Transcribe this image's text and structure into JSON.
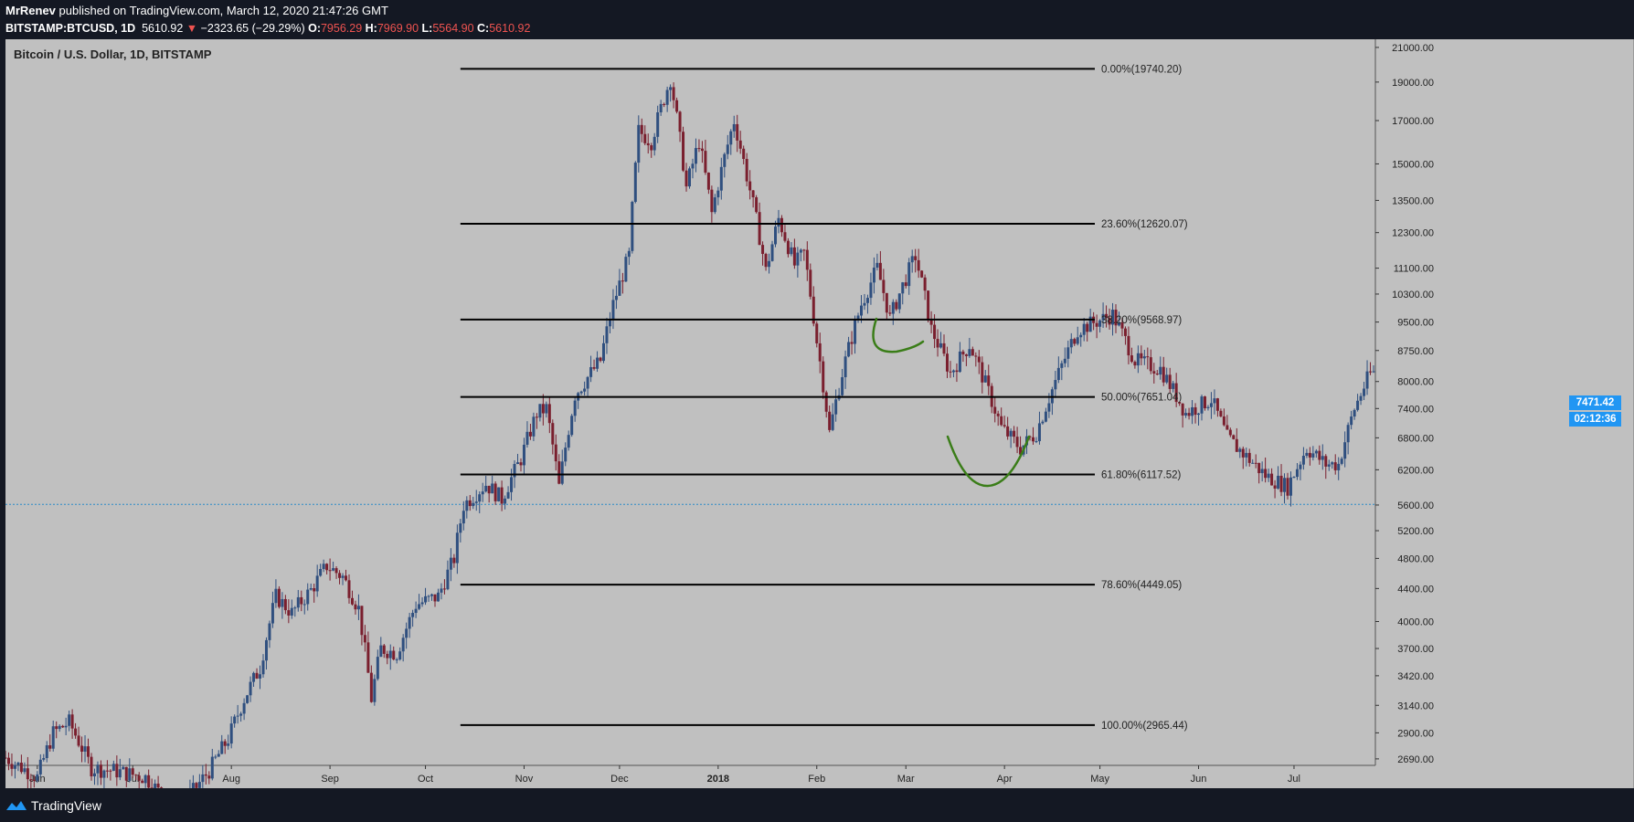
{
  "header": {
    "author": "MrRenev",
    "published": "published on TradingView.com, March 12, 2020 21:47:26 GMT",
    "symbol": "BITSTAMP:BTCUSD, 1D",
    "last": "5610.92",
    "change_arrow": "▼",
    "change": "−2323.65 (−29.29%)",
    "o_label": "O:",
    "o": "7956.29",
    "h_label": "H:",
    "h": "7969.90",
    "l_label": "L:",
    "l": "5564.90",
    "c_label": "C:",
    "c": "5610.92"
  },
  "badges": {
    "price": "7471.42",
    "countdown": "02:12:36"
  },
  "footer": {
    "brand": "TradingView"
  },
  "colors": {
    "background": "#141823",
    "chart_bg": "#c0c0c0",
    "up_candle": "#2f4f7f",
    "down_candle": "#7a1f2e",
    "fib_line": "#000000",
    "annotation": "#3a7d18",
    "badge": "#2196f3",
    "down_text": "#ef5350"
  },
  "chart_data": {
    "type": "candlestick",
    "title": "Bitcoin / U.S. Dollar, 1D, BITSTAMP",
    "scale": "log",
    "ylim": [
      2640,
      21500
    ],
    "y_ticks": [
      "21000.00",
      "19000.00",
      "17000.00",
      "15000.00",
      "13500.00",
      "12300.00",
      "11100.00",
      "10300.00",
      "9500.00",
      "8750.00",
      "8000.00",
      "7400.00",
      "6800.00",
      "6200.00",
      "5600.00",
      "5200.00",
      "4800.00",
      "4400.00",
      "4000.00",
      "3700.00",
      "3420.00",
      "3140.00",
      "2900.00",
      "2690.00"
    ],
    "x_ticks": [
      "Jun",
      "Jul",
      "Aug",
      "Sep",
      "Oct",
      "Nov",
      "Dec",
      "2018",
      "Feb",
      "Mar",
      "Apr",
      "May",
      "Jun",
      "Jul"
    ],
    "x_range": [
      "2017-05-22",
      "2018-07-26"
    ],
    "current_price_line": 5610.92,
    "fib_levels": [
      {
        "label": "0.00%(19740.20)",
        "value": 19740.2
      },
      {
        "label": "23.60%(12620.07)",
        "value": 12620.07
      },
      {
        "label": "38.20%(9568.97)",
        "value": 9568.97
      },
      {
        "label": "50.00%(7651.04)",
        "value": 7651.04
      },
      {
        "label": "61.80%(6117.52)",
        "value": 6117.52
      },
      {
        "label": "78.60%(4449.05)",
        "value": 4449.05
      },
      {
        "label": "100.00%(2965.44)",
        "value": 2965.44
      }
    ],
    "fib_start_date": "2017-10-12",
    "annotations": [
      "green arc near 9500 in mid-January 2018",
      "green U-shaped arc near 5700 in early February 2018"
    ],
    "price_path": [
      [
        "2017-05-22",
        2700
      ],
      [
        "2017-06-01",
        2550
      ],
      [
        "2017-06-06",
        2900
      ],
      [
        "2017-06-11",
        2990
      ],
      [
        "2017-06-18",
        2620
      ],
      [
        "2017-06-25",
        2600
      ],
      [
        "2017-07-05",
        2550
      ],
      [
        "2017-07-15",
        2300
      ],
      [
        "2017-07-25",
        2600
      ],
      [
        "2017-07-31",
        2850
      ],
      [
        "2017-08-05",
        3200
      ],
      [
        "2017-08-10",
        3500
      ],
      [
        "2017-08-15",
        4300
      ],
      [
        "2017-08-20",
        4100
      ],
      [
        "2017-08-26",
        4380
      ],
      [
        "2017-08-31",
        4700
      ],
      [
        "2017-09-05",
        4550
      ],
      [
        "2017-09-10",
        4150
      ],
      [
        "2017-09-14",
        3200
      ],
      [
        "2017-09-17",
        3700
      ],
      [
        "2017-09-22",
        3650
      ],
      [
        "2017-09-28",
        4200
      ],
      [
        "2017-10-05",
        4300
      ],
      [
        "2017-10-10",
        4800
      ],
      [
        "2017-10-13",
        5600
      ],
      [
        "2017-10-20",
        5950
      ],
      [
        "2017-10-25",
        5700
      ],
      [
        "2017-10-31",
        6400
      ],
      [
        "2017-11-05",
        7300
      ],
      [
        "2017-11-08",
        7400
      ],
      [
        "2017-11-12",
        5900
      ],
      [
        "2017-11-17",
        7700
      ],
      [
        "2017-11-25",
        8500
      ],
      [
        "2017-11-29",
        10000
      ],
      [
        "2017-12-04",
        11500
      ],
      [
        "2017-12-07",
        16500
      ],
      [
        "2017-12-11",
        16000
      ],
      [
        "2017-12-17",
        19200
      ],
      [
        "2017-12-22",
        14000
      ],
      [
        "2017-12-26",
        16000
      ],
      [
        "2017-12-30",
        13000
      ],
      [
        "2018-01-06",
        17000
      ],
      [
        "2018-01-10",
        14500
      ],
      [
        "2018-01-16",
        11000
      ],
      [
        "2018-01-20",
        12800
      ],
      [
        "2018-01-25",
        11200
      ],
      [
        "2018-01-28",
        11600
      ],
      [
        "2018-02-01",
        9000
      ],
      [
        "2018-02-05",
        6900
      ],
      [
        "2018-02-09",
        8200
      ],
      [
        "2018-02-15",
        10000
      ],
      [
        "2018-02-20",
        11100
      ],
      [
        "2018-02-24",
        9600
      ],
      [
        "2018-03-04",
        11500
      ],
      [
        "2018-03-09",
        9300
      ],
      [
        "2018-03-15",
        8200
      ],
      [
        "2018-03-21",
        8900
      ],
      [
        "2018-03-31",
        7000
      ],
      [
        "2018-04-06",
        6600
      ],
      [
        "2018-04-11",
        6900
      ],
      [
        "2018-04-17",
        8000
      ],
      [
        "2018-04-24",
        9300
      ],
      [
        "2018-05-05",
        9700
      ],
      [
        "2018-05-12",
        8500
      ],
      [
        "2018-05-20",
        8300
      ],
      [
        "2018-05-28",
        7300
      ],
      [
        "2018-06-05",
        7600
      ],
      [
        "2018-06-10",
        6800
      ],
      [
        "2018-06-15",
        6500
      ],
      [
        "2018-06-22",
        6100
      ],
      [
        "2018-06-29",
        5900
      ],
      [
        "2018-07-05",
        6600
      ],
      [
        "2018-07-11",
        6300
      ],
      [
        "2018-07-15",
        6300
      ],
      [
        "2018-07-20",
        7400
      ],
      [
        "2018-07-25",
        8200
      ]
    ]
  }
}
